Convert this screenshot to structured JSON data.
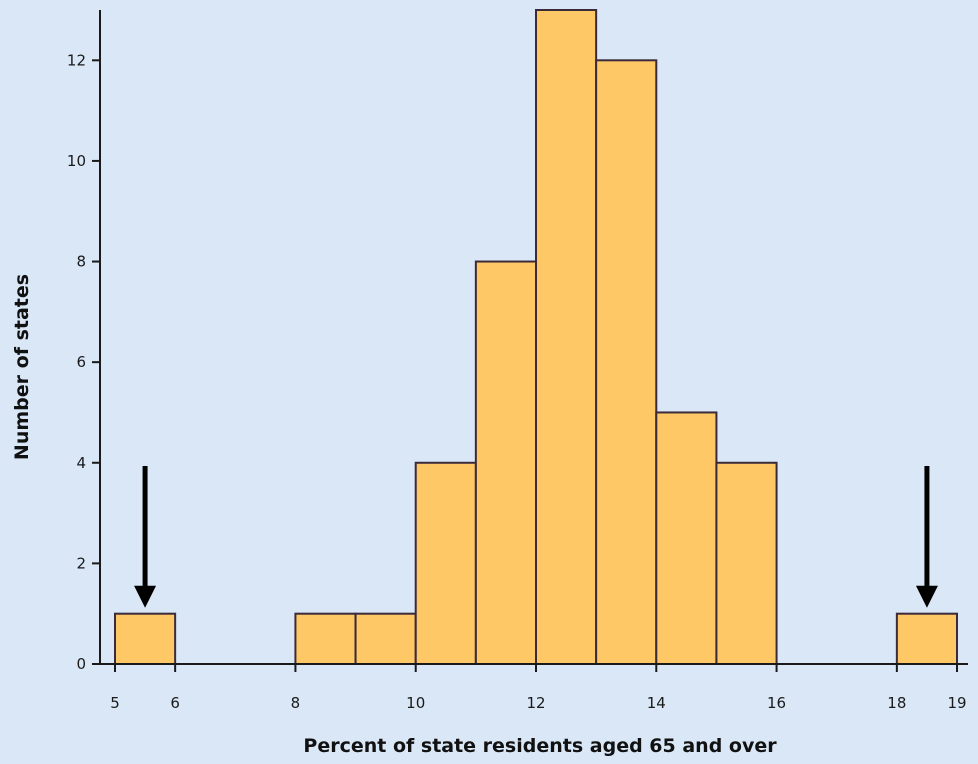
{
  "chart_data": {
    "type": "bar",
    "title": "",
    "xlabel": "Percent of state residents aged 65 and over",
    "ylabel": "Number of states",
    "xlim": [
      5,
      19
    ],
    "ylim": [
      0,
      13
    ],
    "x_ticks": [
      5,
      6,
      8,
      10,
      12,
      14,
      16,
      18,
      19
    ],
    "y_ticks": [
      0,
      2,
      4,
      6,
      8,
      10,
      12
    ],
    "bins": [
      {
        "start": 5,
        "end": 6,
        "value": 1
      },
      {
        "start": 8,
        "end": 9,
        "value": 1
      },
      {
        "start": 9,
        "end": 10,
        "value": 1
      },
      {
        "start": 10,
        "end": 11,
        "value": 4
      },
      {
        "start": 11,
        "end": 12,
        "value": 8
      },
      {
        "start": 12,
        "end": 13,
        "value": 13
      },
      {
        "start": 13,
        "end": 14,
        "value": 12
      },
      {
        "start": 14,
        "end": 15,
        "value": 5
      },
      {
        "start": 15,
        "end": 16,
        "value": 4
      },
      {
        "start": 18,
        "end": 19,
        "value": 1
      }
    ],
    "arrows": [
      {
        "x": 5.5,
        "points_to_value": 1,
        "label": ""
      },
      {
        "x": 18.5,
        "points_to_value": 1,
        "label": ""
      }
    ],
    "grid": false,
    "colors": {
      "bar": "#fec866",
      "bar_edge": "#3a2a3a",
      "background": "#d9e7f7"
    }
  }
}
